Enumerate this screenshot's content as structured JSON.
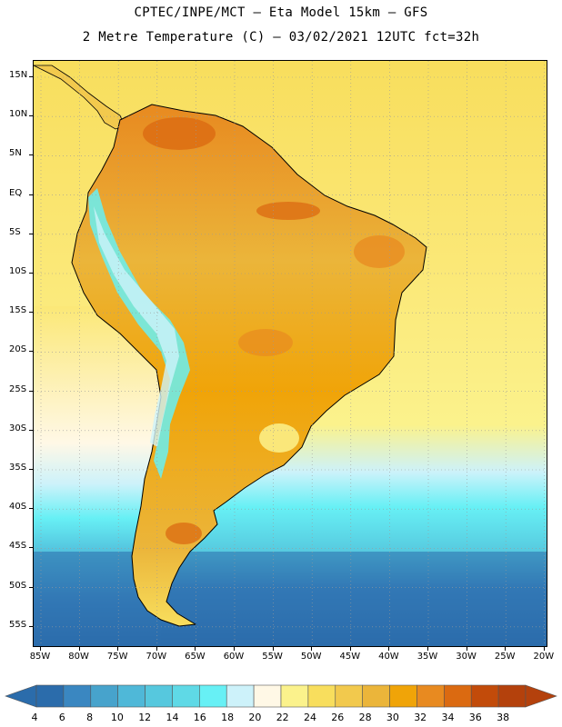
{
  "header": {
    "title_line1": "CPTEC/INPE/MCT  –   Eta Model 15km  –  GFS",
    "title_line2": "2 Metre Temperature (C) – 03/02/2021 12UTC fct=32h"
  },
  "map": {
    "lat_labels": [
      "15N",
      "10N",
      "5N",
      "EQ",
      "5S",
      "10S",
      "15S",
      "20S",
      "25S",
      "30S",
      "35S",
      "40S",
      "45S",
      "50S",
      "55S"
    ],
    "lon_labels": [
      "85W",
      "80W",
      "75W",
      "70W",
      "65W",
      "60W",
      "55W",
      "50W",
      "45W",
      "40W",
      "35W",
      "30W",
      "25W",
      "20W"
    ]
  },
  "legend": {
    "values": [
      "4",
      "6",
      "8",
      "10",
      "12",
      "14",
      "16",
      "18",
      "20",
      "22",
      "24",
      "26",
      "28",
      "30",
      "32",
      "34",
      "36",
      "38"
    ],
    "colors": [
      "#2b6cab",
      "#3a87c1",
      "#47a3cc",
      "#4fb8d8",
      "#56c8de",
      "#5fd9e6",
      "#67f0f5",
      "#cdf2fa",
      "#fff8e6",
      "#fbf28c",
      "#f8de5d",
      "#f2c94d",
      "#ebb53a",
      "#f0a408",
      "#e88a20",
      "#db6a11",
      "#c24b0a",
      "#b4410c"
    ]
  }
}
